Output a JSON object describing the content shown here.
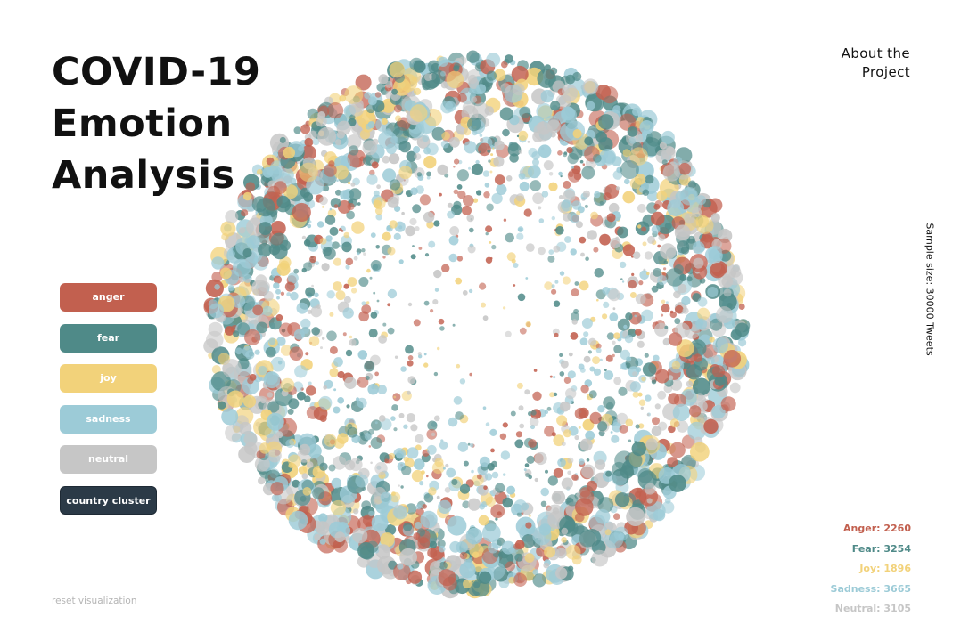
{
  "title": {
    "line1": "COVID-19",
    "line2": "Emotion",
    "line3": "Analysis"
  },
  "about": {
    "line1": "About the",
    "line2": "Project"
  },
  "sample_size": "Sample size: 30000 Tweets",
  "legend": [
    {
      "label": "anger",
      "color": "#c2604f"
    },
    {
      "label": "fear",
      "color": "#4f8a88"
    },
    {
      "label": "joy",
      "color": "#f2d27a"
    },
    {
      "label": "sadness",
      "color": "#9ccbd7"
    },
    {
      "label": "neutral",
      "color": "#c6c6c6"
    },
    {
      "label": "country cluster",
      "color": "#2b3a47"
    }
  ],
  "reset_label": "reset visualization",
  "counts": [
    {
      "label": "Anger: 2260",
      "color": "#c2604f"
    },
    {
      "label": "Fear: 3254",
      "color": "#4f8a88"
    },
    {
      "label": "Joy: 1896",
      "color": "#f2d27a"
    },
    {
      "label": "Sadness: 3665",
      "color": "#9ccbd7"
    },
    {
      "label": "Neutral: 3105",
      "color": "#c6c6c6"
    }
  ]
}
